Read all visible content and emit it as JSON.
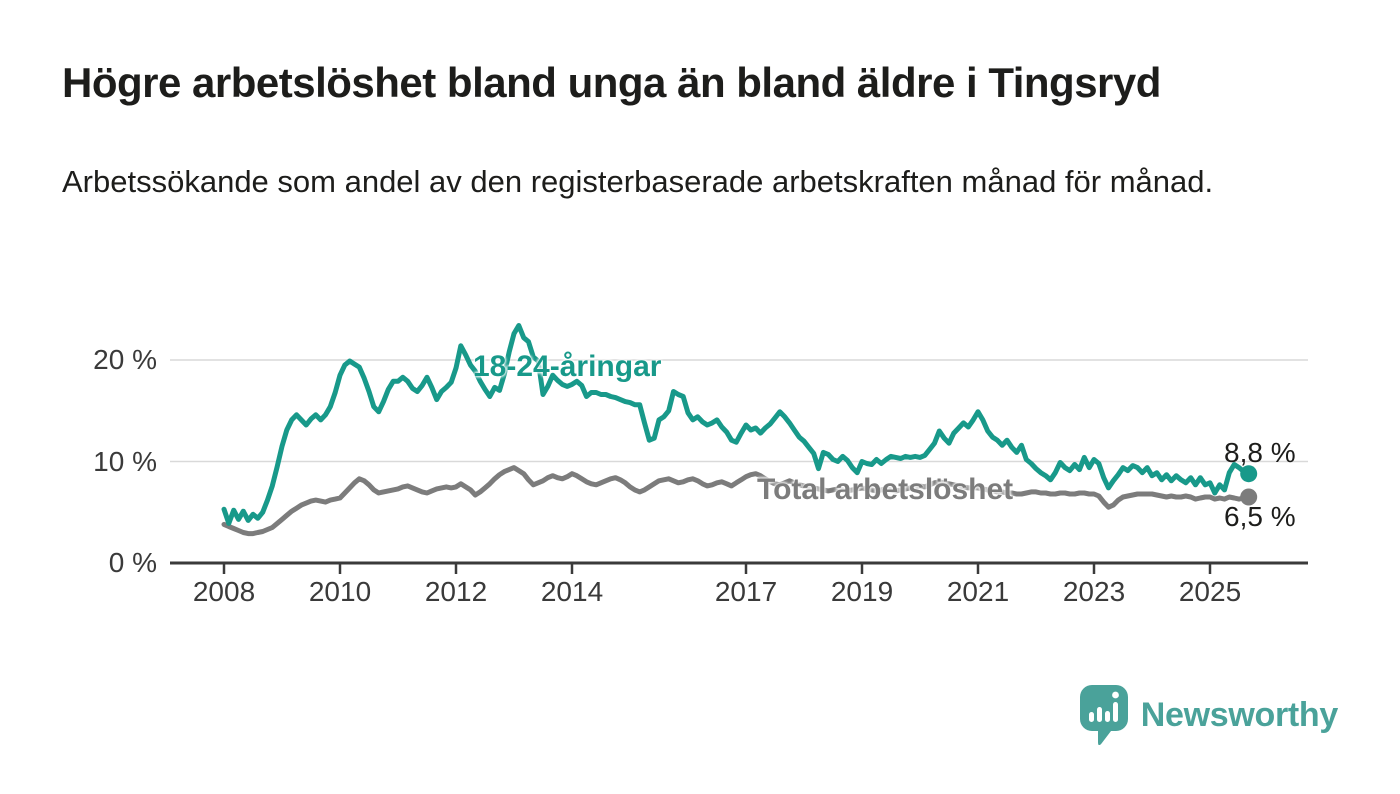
{
  "header": {
    "title": "Högre arbetslöshet bland unga än bland äldre i Tingsryd",
    "subtitle": "Arbetssökande som andel av den registerbaserade arbetskraften månad för månad."
  },
  "chart_data": {
    "type": "line",
    "title": "Högre arbetslöshet bland unga än bland äldre i Tingsryd",
    "subtitle": "Arbetssökande som andel av den registerbaserade arbetskraften månad för månad.",
    "x_start": "2008-01",
    "x_end": "2025-09",
    "x_frequency": "monthly",
    "x_tick_years": [
      2008,
      2010,
      2012,
      2014,
      2017,
      2019,
      2021,
      2023,
      2025
    ],
    "y_ticks": [
      {
        "label": "0 %",
        "value": 0
      },
      {
        "label": "10 %",
        "value": 10
      },
      {
        "label": "20 %",
        "value": 20
      }
    ],
    "ylim": [
      0,
      24
    ],
    "grid": "horizontal",
    "colors": {
      "young": "#18998a",
      "total": "#7c7c7c",
      "gridline": "#d9d9d9",
      "axis": "#3a3a3a"
    },
    "series": [
      {
        "name": "18-24-åringar",
        "color": "#18998a",
        "end_label": "8,8 %",
        "end_value": 8.8,
        "values": [
          5.3,
          3.9,
          5.2,
          4.3,
          5.1,
          4.2,
          4.8,
          4.4,
          5.0,
          6.2,
          7.6,
          9.5,
          11.5,
          13.1,
          14.1,
          14.6,
          14.1,
          13.6,
          14.2,
          14.6,
          14.1,
          14.6,
          15.4,
          16.8,
          18.5,
          19.5,
          19.9,
          19.6,
          19.3,
          18.2,
          16.9,
          15.4,
          14.9,
          15.9,
          17.1,
          17.9,
          17.9,
          18.3,
          17.9,
          17.2,
          16.9,
          17.5,
          18.3,
          17.3,
          16.1,
          16.9,
          17.3,
          17.8,
          19.2,
          21.4,
          20.5,
          19.5,
          18.9,
          17.9,
          17.1,
          16.4,
          17.3,
          17.0,
          18.6,
          20.8,
          22.6,
          23.4,
          22.2,
          21.8,
          20.3,
          19.9,
          16.6,
          17.4,
          18.5,
          18.0,
          17.6,
          17.4,
          17.6,
          17.9,
          17.5,
          16.4,
          16.8,
          16.8,
          16.6,
          16.6,
          16.4,
          16.3,
          16.1,
          15.9,
          15.8,
          15.6,
          15.6,
          13.8,
          12.1,
          12.3,
          14.1,
          14.4,
          15.0,
          16.9,
          16.6,
          16.4,
          14.8,
          14.1,
          14.4,
          13.9,
          13.6,
          13.8,
          14.1,
          13.4,
          12.9,
          12.1,
          11.9,
          12.8,
          13.6,
          13.1,
          13.3,
          12.8,
          13.3,
          13.7,
          14.3,
          14.9,
          14.4,
          13.8,
          13.1,
          12.4,
          12.0,
          11.4,
          10.8,
          9.3,
          10.9,
          10.7,
          10.2,
          10.0,
          10.5,
          10.1,
          9.4,
          8.9,
          10.0,
          9.8,
          9.7,
          10.2,
          9.8,
          10.2,
          10.5,
          10.4,
          10.3,
          10.5,
          10.4,
          10.5,
          10.4,
          10.6,
          11.2,
          11.8,
          13.0,
          12.3,
          11.8,
          12.8,
          13.3,
          13.8,
          13.4,
          14.1,
          14.9,
          14.1,
          13.0,
          12.4,
          12.1,
          11.6,
          12.1,
          11.4,
          10.9,
          11.6,
          10.2,
          9.8,
          9.3,
          8.9,
          8.6,
          8.2,
          8.9,
          9.9,
          9.4,
          9.1,
          9.7,
          9.2,
          10.4,
          9.4,
          10.2,
          9.8,
          8.4,
          7.4,
          8.1,
          8.7,
          9.4,
          9.1,
          9.6,
          9.4,
          8.9,
          9.4,
          8.6,
          8.9,
          8.2,
          8.7,
          8.1,
          8.6,
          8.2,
          7.9,
          8.4,
          7.7,
          8.4,
          7.7,
          7.9,
          6.9,
          7.7,
          7.2,
          8.9,
          9.7,
          9.4,
          9.0,
          8.8
        ]
      },
      {
        "name": "Total arbetslöshet",
        "color": "#7c7c7c",
        "end_label": "6,5 %",
        "end_value": 6.5,
        "values": [
          3.8,
          3.6,
          3.4,
          3.2,
          3.0,
          2.9,
          2.9,
          3.0,
          3.1,
          3.3,
          3.5,
          3.9,
          4.3,
          4.7,
          5.1,
          5.4,
          5.7,
          5.9,
          6.1,
          6.2,
          6.1,
          6.0,
          6.2,
          6.3,
          6.4,
          6.9,
          7.4,
          7.9,
          8.3,
          8.1,
          7.7,
          7.2,
          6.9,
          7.0,
          7.1,
          7.2,
          7.3,
          7.5,
          7.6,
          7.4,
          7.2,
          7.0,
          6.9,
          7.1,
          7.3,
          7.4,
          7.5,
          7.4,
          7.5,
          7.8,
          7.5,
          7.2,
          6.7,
          7.0,
          7.4,
          7.8,
          8.3,
          8.7,
          9.0,
          9.2,
          9.4,
          9.1,
          8.8,
          8.2,
          7.7,
          7.9,
          8.1,
          8.4,
          8.6,
          8.4,
          8.3,
          8.5,
          8.8,
          8.6,
          8.3,
          8.0,
          7.8,
          7.7,
          7.9,
          8.1,
          8.3,
          8.4,
          8.2,
          7.9,
          7.5,
          7.2,
          7.0,
          7.2,
          7.5,
          7.8,
          8.1,
          8.2,
          8.3,
          8.1,
          7.9,
          8.0,
          8.2,
          8.3,
          8.1,
          7.8,
          7.6,
          7.7,
          7.9,
          8.0,
          7.8,
          7.6,
          7.9,
          8.2,
          8.5,
          8.7,
          8.8,
          8.6,
          8.3,
          8.0,
          7.8,
          7.7,
          7.9,
          8.1,
          7.9,
          7.7,
          7.6,
          7.5,
          7.4,
          7.3,
          7.2,
          7.1,
          7.2,
          7.3,
          7.2,
          7.1,
          7.2,
          7.3,
          7.4,
          7.3,
          7.2,
          7.1,
          7.2,
          7.3,
          7.2,
          7.1,
          7.2,
          7.3,
          7.4,
          7.5,
          7.6,
          7.5,
          7.7,
          7.9,
          8.0,
          7.9,
          7.8,
          7.7,
          7.6,
          7.5,
          7.4,
          7.4,
          7.4,
          7.3,
          7.2,
          7.1,
          7.0,
          7.0,
          6.9,
          6.9,
          6.8,
          6.8,
          6.9,
          7.0,
          7.0,
          6.9,
          6.9,
          6.8,
          6.8,
          6.9,
          6.9,
          6.8,
          6.8,
          6.9,
          6.9,
          6.8,
          6.8,
          6.6,
          6.0,
          5.5,
          5.7,
          6.2,
          6.5,
          6.6,
          6.7,
          6.8,
          6.8,
          6.8,
          6.8,
          6.7,
          6.6,
          6.5,
          6.6,
          6.5,
          6.5,
          6.6,
          6.5,
          6.3,
          6.4,
          6.5,
          6.5,
          6.3,
          6.4,
          6.3,
          6.5,
          6.4,
          6.3,
          6.4,
          6.5
        ]
      }
    ]
  },
  "branding": {
    "logo_text": "Newsworthy",
    "logo_color": "#4aa29a",
    "logo_icon": "speech-bubble-bar-chart"
  }
}
